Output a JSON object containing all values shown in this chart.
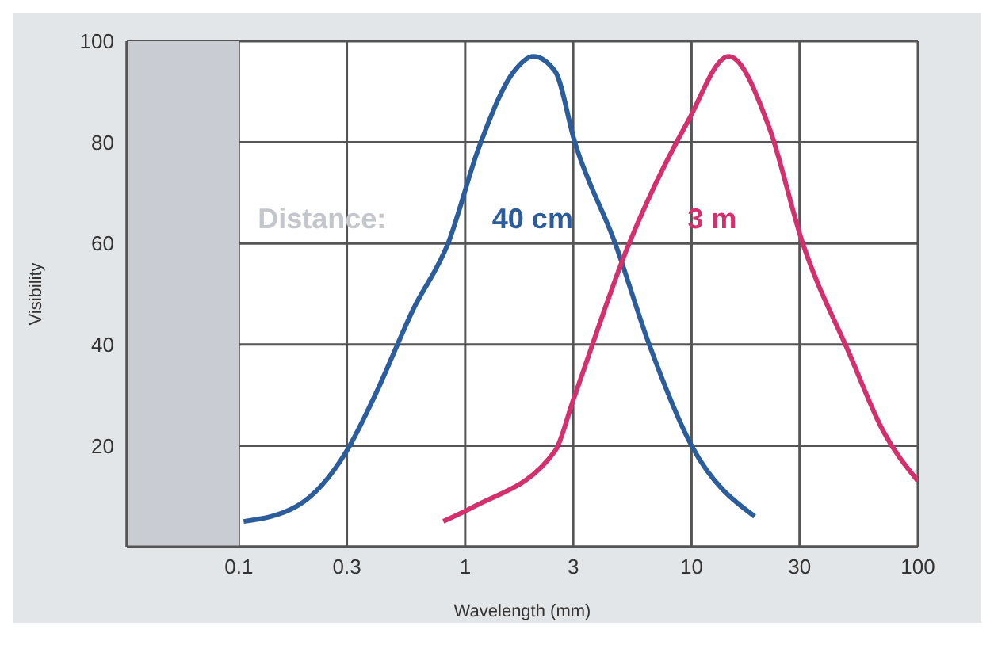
{
  "chart_data": {
    "type": "line",
    "xlabel": "Wavelength (mm)",
    "ylabel": "Visibility",
    "log": "x",
    "grid": true,
    "line_style": "solid",
    "xlim": [
      0.032,
      100
    ],
    "xticks": [
      0.1,
      0.3,
      1,
      3,
      10,
      30,
      100
    ],
    "ylim": [
      0,
      100
    ],
    "yticks": [
      20,
      40,
      60,
      80,
      100
    ],
    "annotations": [
      "Distance:"
    ],
    "bands": [
      {
        "axis": "x",
        "from": 0.032,
        "to": 0.1,
        "label": null,
        "color": "#c9cdd3"
      }
    ],
    "series": [
      {
        "name": "40 cm",
        "color": "#2b5c9c",
        "x": [
          0.105,
          0.18,
          0.3,
          0.4,
          0.59,
          0.84,
          1.15,
          1.64,
          2,
          2.5,
          3.05,
          4.6,
          6.5,
          10,
          19
        ],
        "values": [
          5,
          8,
          19,
          30,
          47,
          60,
          79,
          94,
          97,
          94,
          80,
          60,
          40,
          20,
          6
        ]
      },
      {
        "name": "3 m",
        "color": "#d5306e",
        "x": [
          0.8,
          1.1,
          2.5,
          3,
          5.3,
          9.6,
          14.6,
          22,
          31,
          50,
          70,
          100
        ],
        "values": [
          5,
          8,
          19,
          29,
          60,
          84,
          97,
          83,
          60,
          38,
          23,
          13
        ]
      }
    ]
  }
}
